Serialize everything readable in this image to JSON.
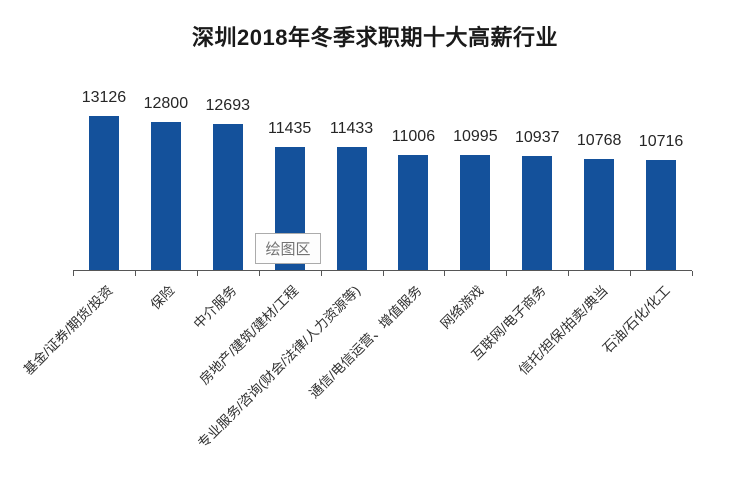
{
  "chart_data": {
    "type": "bar",
    "title": "深圳2018年冬季求职期十大高薪行业",
    "categories": [
      "基金/证券/期货/投资",
      "保险",
      "中介服务",
      "房地产/建筑/建材/工程",
      "专业服务/咨询(财会/法律/人力资源等)",
      "通信/电信运营、增值服务",
      "网络游戏",
      "互联网/电子商务",
      "信托/担保/拍卖/典当",
      "石油/石化/化工"
    ],
    "values": [
      13126,
      12800,
      12693,
      11435,
      11433,
      11006,
      10995,
      10937,
      10768,
      10716
    ],
    "data_labels": "outside-end",
    "bar_color": "#14519B",
    "xlabel": "",
    "ylabel": "",
    "value_axis_visible": false,
    "category_axis_visible": true,
    "value_axis_min_estimate": 4800,
    "grid": false,
    "legend": "none",
    "plot_area_label": "绘图区"
  },
  "colors": {
    "background": "#ffffff",
    "bar": "#14519B",
    "axis": "#565656",
    "title_text": "#1a1a1a",
    "value_label_text": "#262626",
    "category_label_text": "#303030",
    "tooltip_border": "#ababab",
    "tooltip_text": "#737373"
  }
}
